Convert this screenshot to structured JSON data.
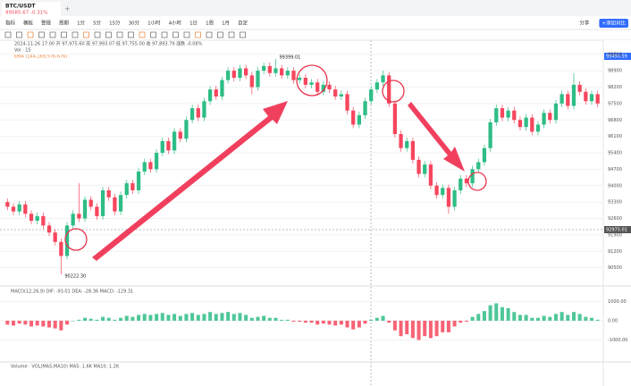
{
  "header": {
    "symbol": "BTC/USDT",
    "price": "99585.67 -0.31%"
  },
  "toolbar": [
    "指标",
    "模板",
    "警报",
    "周期",
    "1分",
    "5分",
    "15分",
    "30分",
    "1小时",
    "4小时",
    "1日",
    "1周",
    "1月",
    "自定"
  ],
  "toolbar_right": [
    "分享",
    "+添加对比"
  ],
  "info": {
    "ohlc": "2024-11-26 17:00 开 97,975.60 高 97,993.07 低 97,755.00 收 97,893.79 涨跌 -0.08%",
    "vol": "Vol · 1S",
    "ema": "EMA (144,169,576,676)"
  },
  "macd_label": "MACD(12,26,9) DIF: -93.01 DEA: -28.36 MACD: -129.31",
  "volume_label": "Volume · VOL(MA5,MA10) MA5: 1.6K MA10: 1.2K",
  "crosshair_label": "92975.01",
  "last_price_label": "99490.59",
  "chart_data": {
    "type": "candlestick",
    "up_color": "#2ebd85",
    "down_color": "#f6465d",
    "high_label": "99399.01",
    "low_label": "90222.30",
    "ylim": [
      89800,
      100200
    ],
    "yticks": [
      90500,
      91200,
      91900,
      92600,
      93300,
      94000,
      94700,
      95400,
      96100,
      96800,
      97500,
      98200,
      98900,
      99600
    ],
    "open": [
      93300,
      93100,
      92900,
      93200,
      92800,
      92500,
      92700,
      92300,
      92000,
      91600,
      91000,
      92300,
      92800,
      92600,
      93400,
      93100,
      92700,
      93800,
      93500,
      92900,
      93600,
      94100,
      93800,
      94600,
      95000,
      94700,
      95400,
      95900,
      95500,
      96300,
      96000,
      96800,
      97300,
      96900,
      97600,
      98100,
      97800,
      98500,
      98900,
      98600,
      99000,
      98700,
      98200,
      98900,
      99100,
      98800,
      99000,
      98700,
      98900,
      98500,
      98600,
      98300,
      98400,
      98000,
      98300,
      98100,
      97800,
      97900,
      97200,
      96600,
      97000,
      97600,
      98100,
      98400,
      98700,
      97500,
      96200,
      95600,
      95900,
      95100,
      94500,
      94900,
      94000,
      93600,
      93900,
      93100,
      93800,
      94300,
      94100,
      94700,
      95000,
      95600,
      96700,
      97300,
      96900,
      97200,
      96800,
      96500,
      96900,
      96300,
      96600,
      97100,
      96800,
      97500,
      97900,
      97400,
      98300,
      98000,
      97600,
      97900
    ],
    "high": [
      93450,
      93250,
      93350,
      93350,
      92950,
      92850,
      92850,
      92450,
      92150,
      91750,
      92450,
      92950,
      94100,
      93550,
      93550,
      93250,
      93950,
      93950,
      93650,
      93750,
      94250,
      94250,
      94750,
      95150,
      95150,
      95550,
      96050,
      96050,
      96450,
      96450,
      96950,
      97450,
      97450,
      97750,
      98250,
      98250,
      98650,
      99050,
      99050,
      99150,
      99150,
      98850,
      99050,
      99250,
      99250,
      99399,
      99150,
      99050,
      99050,
      98750,
      98750,
      98550,
      98550,
      98450,
      98450,
      98250,
      98050,
      98050,
      97350,
      97150,
      97750,
      98250,
      98550,
      98900,
      98850,
      97650,
      96350,
      96050,
      96050,
      95250,
      95050,
      95050,
      94150,
      94050,
      94050,
      93950,
      94450,
      94450,
      94850,
      95150,
      95750,
      96850,
      97450,
      97450,
      97350,
      97350,
      96950,
      97050,
      97050,
      96750,
      97250,
      97250,
      97650,
      98050,
      98050,
      98800,
      98450,
      98150,
      98050,
      98050
    ],
    "low": [
      92950,
      92750,
      92750,
      92650,
      92350,
      92350,
      92150,
      91850,
      91450,
      90222,
      90850,
      92150,
      92450,
      92450,
      92950,
      92550,
      92550,
      93350,
      92750,
      92750,
      93450,
      93650,
      93650,
      94450,
      94550,
      94550,
      95250,
      95350,
      95350,
      95850,
      95850,
      96650,
      96750,
      96750,
      97450,
      97650,
      97650,
      98350,
      98450,
      98450,
      98550,
      97900,
      98050,
      98750,
      98650,
      98650,
      98550,
      98550,
      98350,
      98350,
      98150,
      98150,
      97850,
      97850,
      97950,
      97650,
      97650,
      97050,
      96450,
      96450,
      96850,
      97450,
      97950,
      98250,
      97350,
      96050,
      95450,
      95450,
      94950,
      94350,
      94350,
      93850,
      93450,
      93450,
      92800,
      92950,
      93650,
      93950,
      93950,
      94550,
      94850,
      95450,
      96550,
      96750,
      96750,
      96650,
      96350,
      96350,
      96150,
      96150,
      96450,
      96650,
      96650,
      97350,
      97250,
      97250,
      97850,
      97450,
      97450,
      97350
    ],
    "close": [
      93100,
      92900,
      93200,
      92800,
      92500,
      92700,
      92300,
      92000,
      91600,
      91000,
      92300,
      92800,
      92600,
      93400,
      93100,
      92700,
      93800,
      93500,
      92900,
      93600,
      94100,
      93800,
      94600,
      95000,
      94700,
      95400,
      95900,
      95500,
      96300,
      96000,
      96800,
      97300,
      96900,
      97600,
      98100,
      97800,
      98500,
      98900,
      98600,
      99000,
      98700,
      98200,
      98900,
      99100,
      98800,
      99000,
      98700,
      98900,
      98500,
      98600,
      98300,
      98400,
      98000,
      98300,
      98100,
      97800,
      97900,
      97200,
      96600,
      97000,
      97600,
      98100,
      98400,
      98700,
      97500,
      96200,
      95600,
      95900,
      95100,
      94500,
      94900,
      94000,
      93600,
      93900,
      93100,
      93800,
      94300,
      94100,
      94700,
      95000,
      95600,
      96700,
      97300,
      96900,
      97200,
      96800,
      96500,
      96900,
      96300,
      96600,
      97100,
      96800,
      97500,
      97900,
      97400,
      98300,
      98000,
      97600,
      97900,
      97500
    ],
    "macd": {
      "ylim": [
        -1900,
        1200
      ],
      "yticks": [
        {
          "value": 1000,
          "label": "1000.00"
        },
        {
          "value": 0,
          "label": "0.00"
        },
        {
          "value": -1000,
          "label": "-1000.00"
        }
      ],
      "values": [
        -200,
        -250,
        -150,
        -200,
        -300,
        -250,
        -300,
        -350,
        -400,
        -500,
        -200,
        0,
        50,
        150,
        100,
        50,
        200,
        150,
        50,
        150,
        250,
        200,
        300,
        350,
        300,
        350,
        400,
        300,
        350,
        250,
        350,
        400,
        300,
        350,
        450,
        350,
        400,
        450,
        350,
        400,
        300,
        150,
        200,
        250,
        150,
        150,
        50,
        50,
        -50,
        -50,
        -100,
        -100,
        -200,
        -150,
        -200,
        -250,
        -200,
        -350,
        -450,
        -350,
        -150,
        50,
        150,
        250,
        -100,
        -500,
        -800,
        -700,
        -900,
        -1000,
        -800,
        -900,
        -800,
        -600,
        -600,
        -300,
        -100,
        -50,
        200,
        350,
        500,
        800,
        900,
        700,
        650,
        450,
        300,
        300,
        150,
        150,
        250,
        200,
        350,
        450,
        300,
        450,
        350,
        200,
        150,
        50
      ]
    }
  }
}
